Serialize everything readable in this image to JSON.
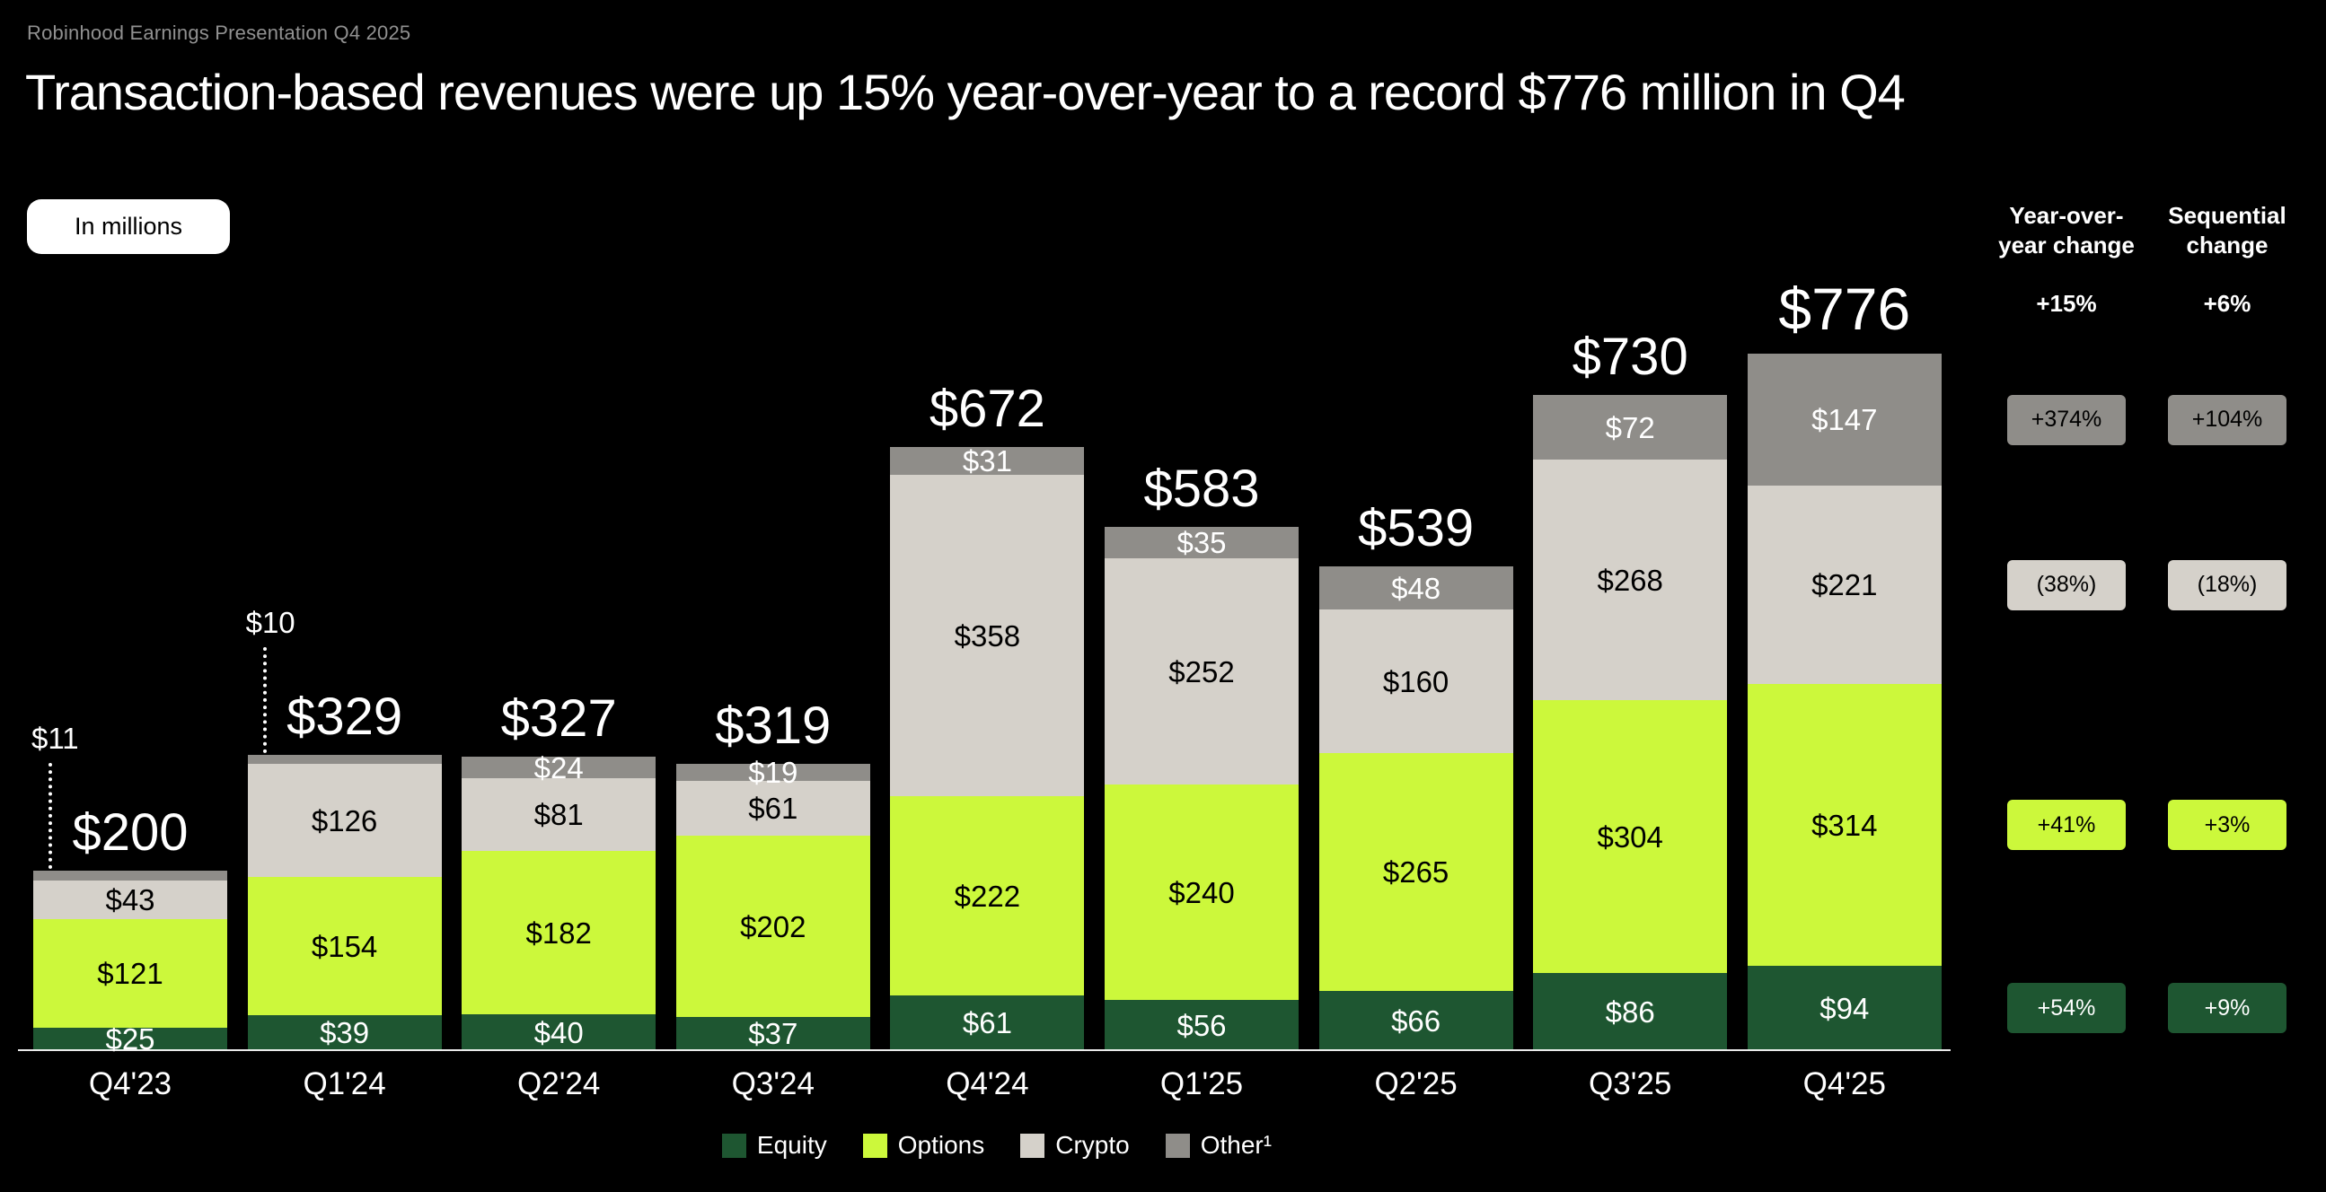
{
  "slide": {
    "kicker": "Robinhood Earnings Presentation Q4 2025",
    "title": "Transaction-based revenues were up 15% year-over-year to a record $776 million in Q4",
    "units_badge": "In millions"
  },
  "colors": {
    "background": "#000000",
    "equity": "#1e5631",
    "options": "#ccf83b",
    "crypto": "#d5d1ca",
    "other": "#8f8d89",
    "text_primary": "#ffffff",
    "text_muted": "#919191"
  },
  "chart_data": {
    "type": "bar",
    "stacked": true,
    "title": "Transaction-based revenues were up 15% year-over-year to a record $776 million in Q4",
    "units": "In millions",
    "value_prefix": "$",
    "categories": [
      "Q4'23",
      "Q1'24",
      "Q2'24",
      "Q3'24",
      "Q4'24",
      "Q1'25",
      "Q2'25",
      "Q3'25",
      "Q4'25"
    ],
    "series": [
      {
        "key": "equity",
        "name": "Equity",
        "color": "#1e5631",
        "label_color": "#ffffff",
        "badge_text_color": "#ffffff",
        "values": [
          25,
          39,
          40,
          37,
          61,
          56,
          66,
          86,
          94
        ]
      },
      {
        "key": "options",
        "name": "Options",
        "color": "#ccf83b",
        "label_color": "#000000",
        "badge_text_color": "#000000",
        "values": [
          121,
          154,
          182,
          202,
          222,
          240,
          265,
          304,
          314
        ]
      },
      {
        "key": "crypto",
        "name": "Crypto",
        "color": "#d5d1ca",
        "label_color": "#000000",
        "badge_text_color": "#000000",
        "values": [
          43,
          126,
          81,
          61,
          358,
          252,
          160,
          268,
          221
        ]
      },
      {
        "key": "other",
        "name": "Other",
        "color": "#8f8d89",
        "label_color": "#ffffff",
        "badge_text_color": "#000000",
        "values": [
          11,
          10,
          24,
          19,
          31,
          35,
          48,
          72,
          147
        ]
      }
    ],
    "totals": [
      200,
      329,
      327,
      319,
      672,
      583,
      539,
      730,
      776
    ],
    "legend": [
      {
        "series": "equity",
        "label": "Equity"
      },
      {
        "series": "options",
        "label": "Options"
      },
      {
        "series": "crypto",
        "label": "Crypto"
      },
      {
        "series": "other",
        "label": "Other¹"
      }
    ]
  },
  "changes_table": {
    "columns": [
      {
        "key": "yoy",
        "header_lines": [
          "Year-over-",
          "year change"
        ]
      },
      {
        "key": "seq",
        "header_lines": [
          "Sequential",
          "change"
        ]
      }
    ],
    "rows": [
      {
        "series": "total",
        "yoy": "+15%",
        "seq": "+6%",
        "style": "plain"
      },
      {
        "series": "other",
        "yoy": "+374%",
        "seq": "+104%",
        "style": "badge"
      },
      {
        "series": "crypto",
        "yoy": "(38%)",
        "seq": "(18%)",
        "style": "badge"
      },
      {
        "series": "options",
        "yoy": "+41%",
        "seq": "+3%",
        "style": "badge"
      },
      {
        "series": "equity",
        "yoy": "+54%",
        "seq": "+9%",
        "style": "badge"
      }
    ]
  }
}
